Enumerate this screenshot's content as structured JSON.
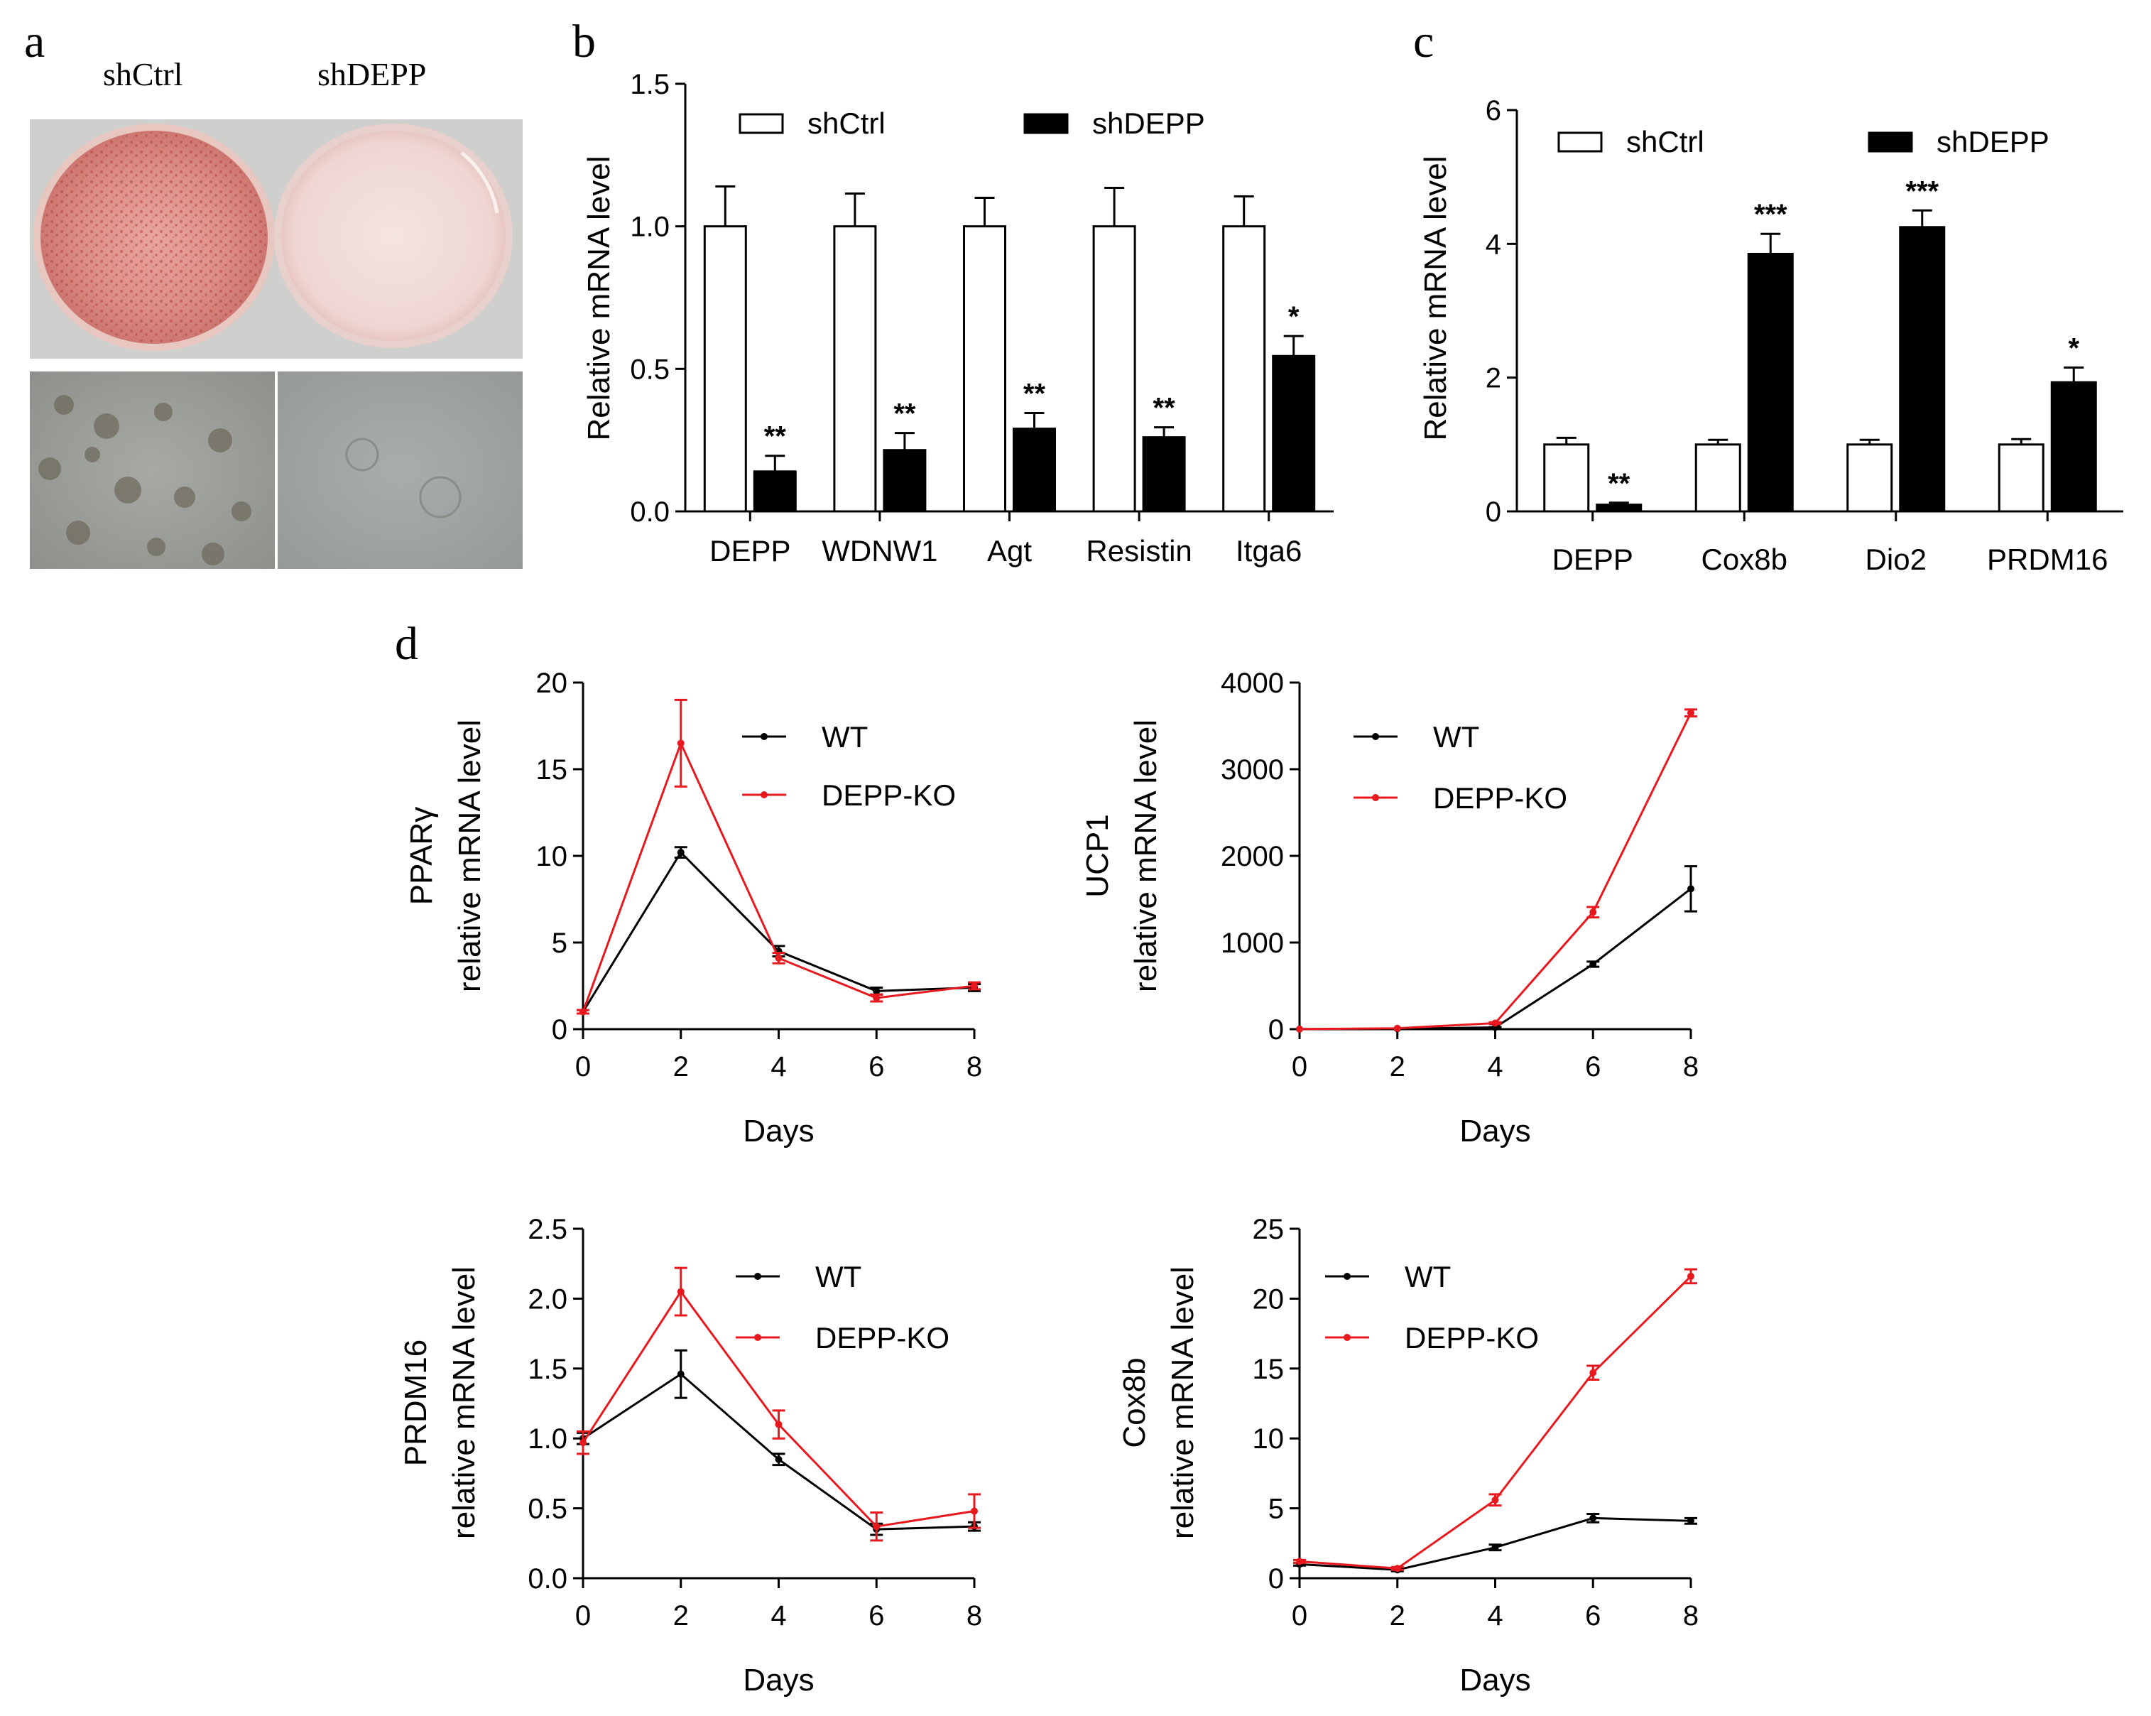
{
  "panel_a": {
    "letter": "a",
    "labels": [
      "shCtrl",
      "shDEPP"
    ]
  },
  "chart_data": [
    {
      "panel": "b",
      "type": "bar",
      "ylabel": "Relative mRNA level",
      "ylim": [
        0,
        1.5
      ],
      "yticks": [
        "0.0",
        "0.5",
        "1.0",
        "1.5"
      ],
      "categories": [
        "DEPP",
        "WDNW1",
        "Agt",
        "Resistin",
        "Itga6"
      ],
      "series": [
        {
          "name": "shCtrl",
          "fill": "#ffffff",
          "values": [
            1.0,
            1.0,
            1.0,
            1.0,
            1.0
          ],
          "errors": [
            0.14,
            0.115,
            0.1,
            0.135,
            0.105
          ]
        },
        {
          "name": "shDEPP",
          "fill": "#000000",
          "values": [
            0.14,
            0.215,
            0.29,
            0.26,
            0.545
          ],
          "errors": [
            0.055,
            0.06,
            0.055,
            0.035,
            0.07
          ]
        }
      ],
      "significance": [
        "**",
        "**",
        "**",
        "**",
        "*"
      ],
      "legend_position": "top"
    },
    {
      "panel": "c",
      "type": "bar",
      "ylabel": "Relative mRNA level",
      "ylim": [
        0,
        6
      ],
      "yticks": [
        "0",
        "2",
        "4",
        "6"
      ],
      "categories": [
        "DEPP",
        "Cox8b",
        "Dio2",
        "PRDM16"
      ],
      "series": [
        {
          "name": "shCtrl",
          "fill": "#ffffff",
          "values": [
            1.0,
            1.0,
            1.0,
            1.0
          ],
          "errors": [
            0.1,
            0.07,
            0.07,
            0.08
          ]
        },
        {
          "name": "shDEPP",
          "fill": "#000000",
          "values": [
            0.1,
            3.85,
            4.25,
            1.93
          ],
          "errors": [
            0.03,
            0.3,
            0.25,
            0.22
          ]
        }
      ],
      "significance": [
        "**",
        "***",
        "***",
        "*"
      ],
      "legend_position": "top"
    },
    {
      "panel": "d",
      "type": "line",
      "ylabel": [
        "PPARγ",
        "relative mRNA level"
      ],
      "xlabel": "Days",
      "x": [
        0,
        2,
        4,
        6,
        8
      ],
      "xticks": [
        "0",
        "2",
        "4",
        "6",
        "8"
      ],
      "ylim": [
        0,
        20
      ],
      "yticks": [
        "0",
        "5",
        "10",
        "15",
        "20"
      ],
      "series": [
        {
          "name": "WT",
          "color": "#000000",
          "values": [
            1.0,
            10.2,
            4.5,
            2.2,
            2.4
          ],
          "errors": [
            0.1,
            0.3,
            0.3,
            0.2,
            0.2
          ]
        },
        {
          "name": "DEPP-KO",
          "color": "#e8191e",
          "values": [
            1.0,
            16.5,
            4.1,
            1.8,
            2.5
          ],
          "errors": [
            0.1,
            2.5,
            0.3,
            0.2,
            0.2
          ]
        }
      ],
      "legend_position": "top-right"
    },
    {
      "panel": "d",
      "type": "line",
      "ylabel": [
        "UCP1",
        "relative mRNA level"
      ],
      "xlabel": "Days",
      "x": [
        0,
        2,
        4,
        6,
        8
      ],
      "xticks": [
        "0",
        "2",
        "4",
        "6",
        "8"
      ],
      "ylim": [
        0,
        4000
      ],
      "yticks": [
        "0",
        "1000",
        "2000",
        "3000",
        "4000"
      ],
      "series": [
        {
          "name": "WT",
          "color": "#000000",
          "values": [
            1,
            5,
            20,
            750,
            1620
          ],
          "errors": [
            0,
            0,
            5,
            30,
            260
          ]
        },
        {
          "name": "DEPP-KO",
          "color": "#e8191e",
          "values": [
            1,
            10,
            70,
            1350,
            3650
          ],
          "errors": [
            0,
            0,
            10,
            60,
            40
          ]
        }
      ],
      "legend_position": "top-left"
    },
    {
      "panel": "d",
      "type": "line",
      "ylabel": [
        "PRDM16",
        "relative mRNA level"
      ],
      "xlabel": "Days",
      "x": [
        0,
        2,
        4,
        6,
        8
      ],
      "xticks": [
        "0",
        "2",
        "4",
        "6",
        "8"
      ],
      "ylim": [
        0,
        2.5
      ],
      "yticks": [
        "0.0",
        "0.5",
        "1.0",
        "1.5",
        "2.0",
        "2.5"
      ],
      "series": [
        {
          "name": "WT",
          "color": "#000000",
          "values": [
            1.0,
            1.46,
            0.85,
            0.35,
            0.37
          ],
          "errors": [
            0.04,
            0.17,
            0.04,
            0.04,
            0.03
          ]
        },
        {
          "name": "DEPP-KO",
          "color": "#e8191e",
          "values": [
            0.97,
            2.05,
            1.1,
            0.37,
            0.48
          ],
          "errors": [
            0.08,
            0.17,
            0.1,
            0.1,
            0.12
          ]
        }
      ],
      "legend_position": "top-right"
    },
    {
      "panel": "d",
      "type": "line",
      "ylabel": [
        "Cox8b",
        "relative mRNA level"
      ],
      "xlabel": "Days",
      "x": [
        0,
        2,
        4,
        6,
        8
      ],
      "xticks": [
        "0",
        "2",
        "4",
        "6",
        "8"
      ],
      "ylim": [
        0,
        25
      ],
      "yticks": [
        "0",
        "5",
        "10",
        "15",
        "20",
        "25"
      ],
      "series": [
        {
          "name": "WT",
          "color": "#000000",
          "values": [
            1.0,
            0.6,
            2.2,
            4.3,
            4.1
          ],
          "errors": [
            0.1,
            0.1,
            0.2,
            0.3,
            0.2
          ]
        },
        {
          "name": "DEPP-KO",
          "color": "#e8191e",
          "values": [
            1.2,
            0.7,
            5.6,
            14.7,
            21.6
          ],
          "errors": [
            0.1,
            0.1,
            0.4,
            0.5,
            0.5
          ]
        }
      ],
      "legend_position": "top-left"
    }
  ]
}
